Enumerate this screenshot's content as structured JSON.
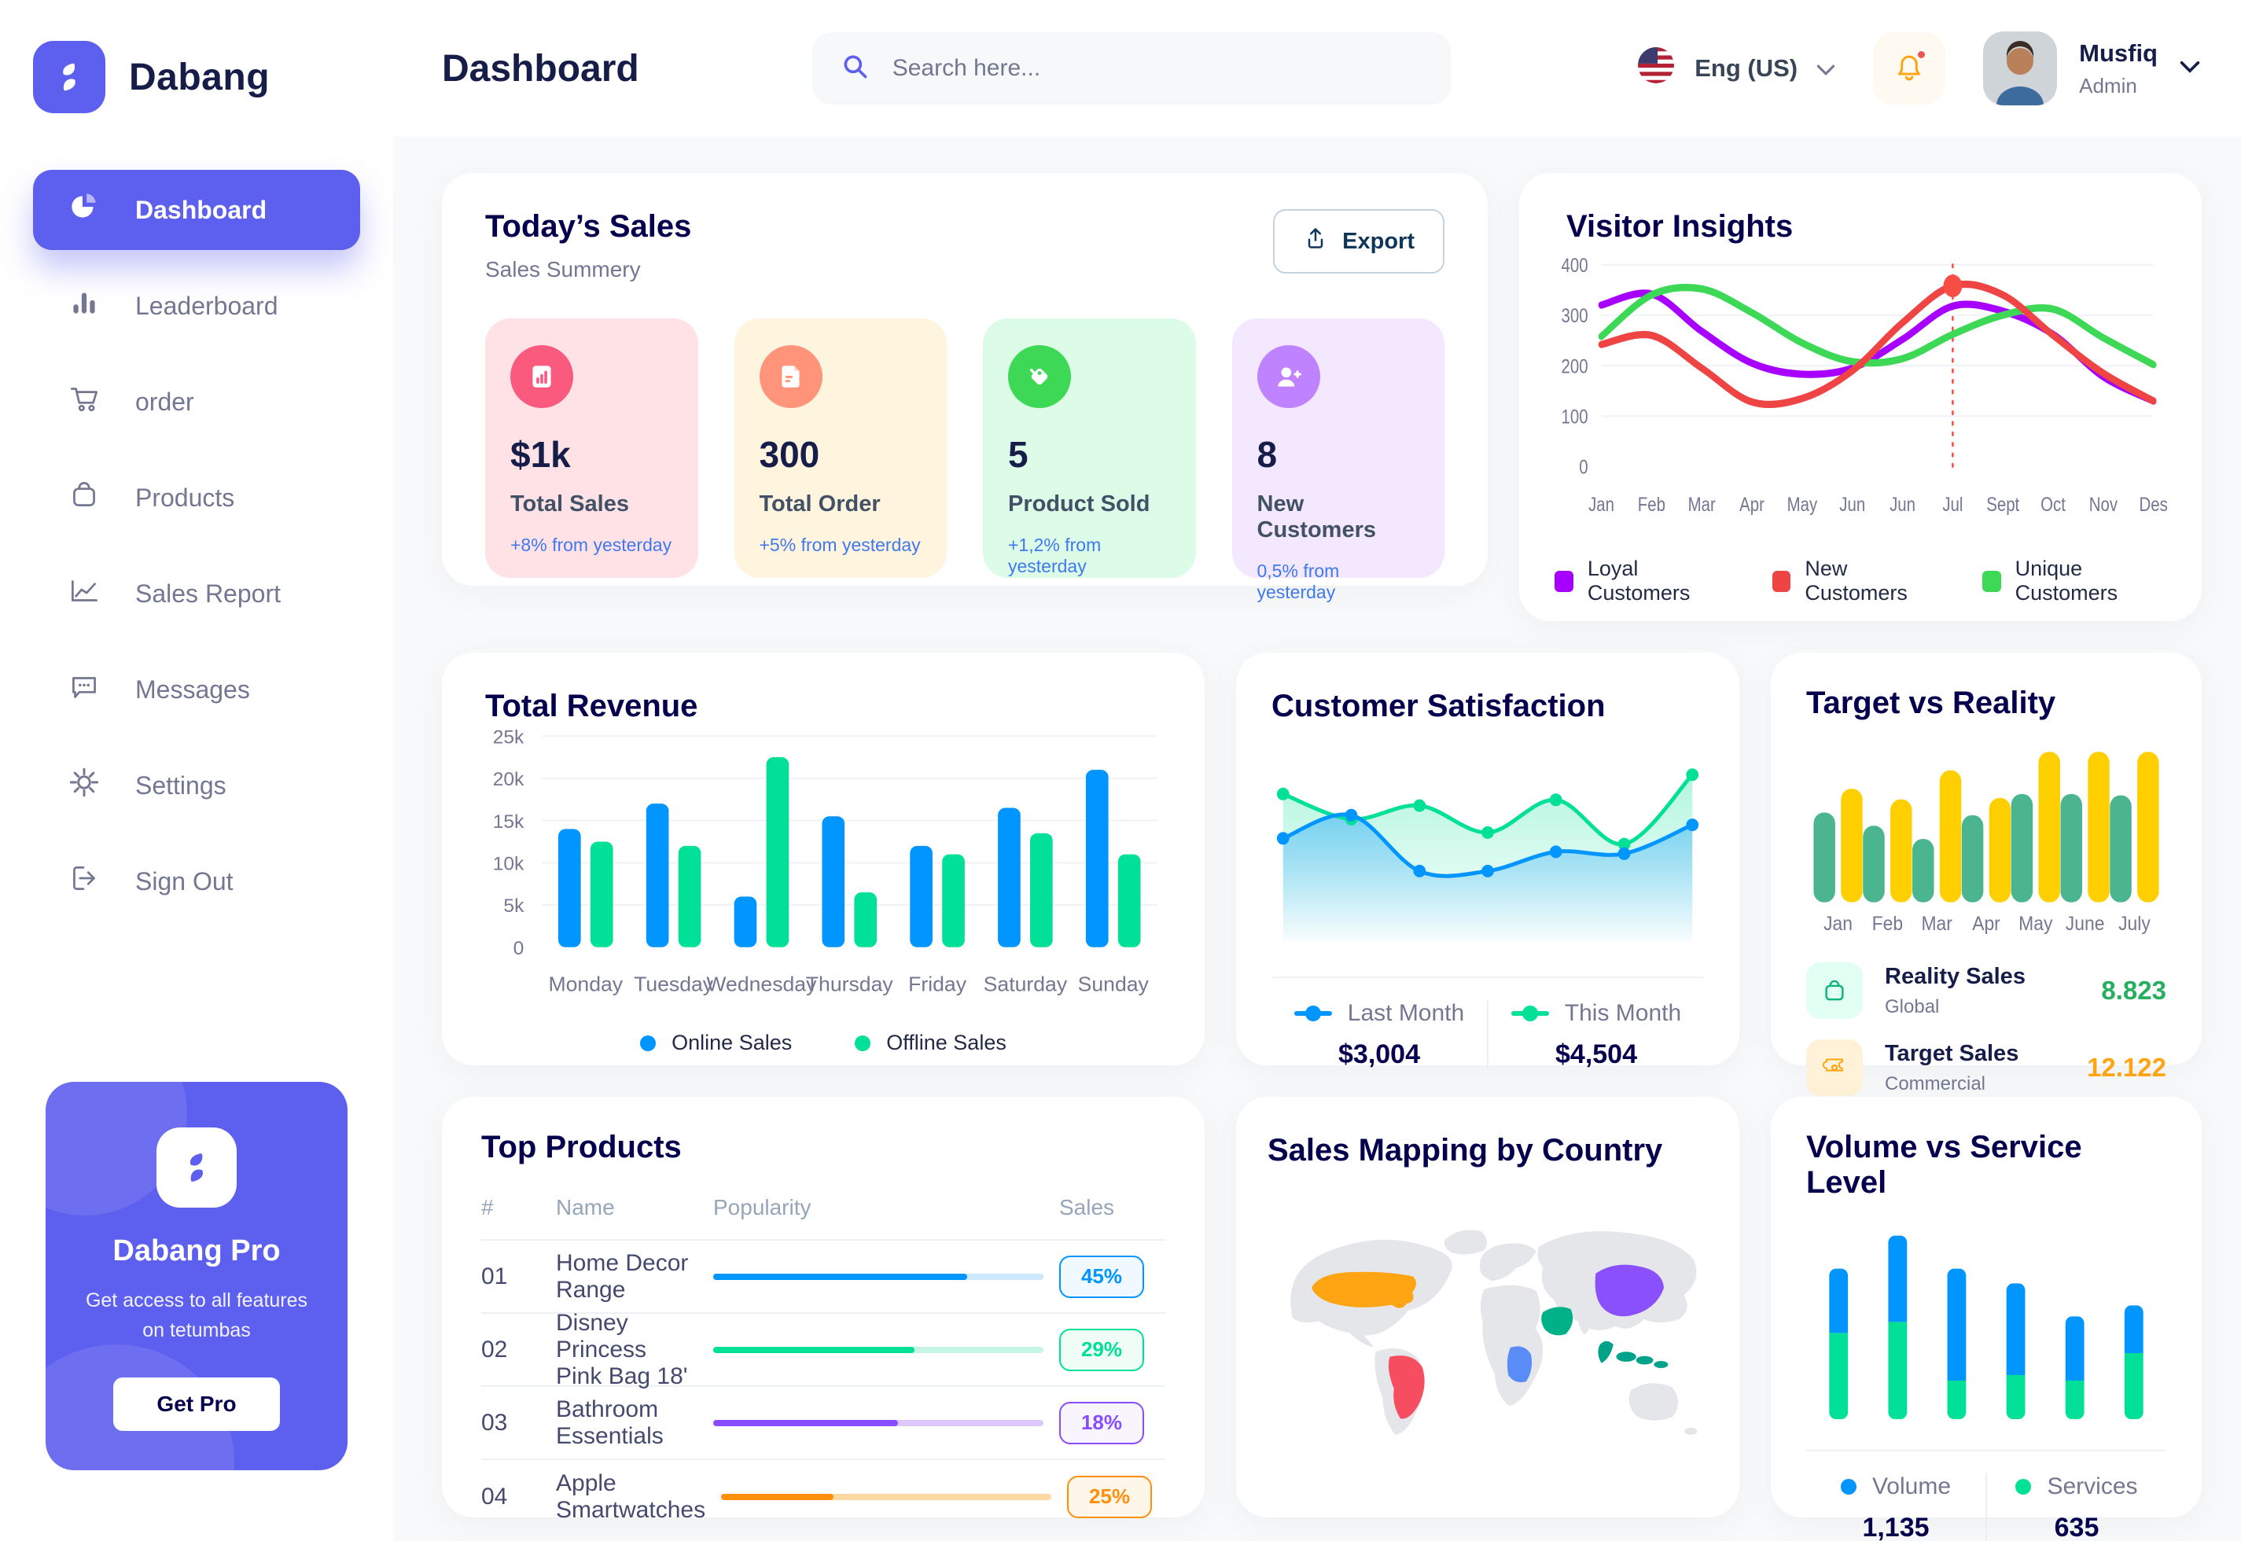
{
  "app": {
    "name": "Dabang"
  },
  "sidebar": {
    "items": [
      {
        "label": "Dashboard",
        "icon": "pie-chart-icon",
        "active": true
      },
      {
        "label": "Leaderboard",
        "icon": "bar-chart-icon"
      },
      {
        "label": "order",
        "icon": "cart-icon"
      },
      {
        "label": "Products",
        "icon": "bag-icon"
      },
      {
        "label": "Sales Report",
        "icon": "trend-icon"
      },
      {
        "label": "Messages",
        "icon": "message-icon"
      },
      {
        "label": "Settings",
        "icon": "gear-icon"
      },
      {
        "label": "Sign Out",
        "icon": "sign-out-icon"
      }
    ],
    "pro": {
      "title": "Dabang Pro",
      "subtitle": "Get access to all features on tetumbas",
      "button": "Get Pro"
    }
  },
  "header": {
    "title": "Dashboard",
    "search_placeholder": "Search here...",
    "language": "Eng (US)",
    "user": {
      "name": "Musfiq",
      "role": "Admin"
    }
  },
  "today_sales": {
    "title": "Today’s Sales",
    "subtitle": "Sales Summery",
    "export_label": "Export",
    "stats": [
      {
        "value": "$1k",
        "label": "Total Sales",
        "delta": "+8% from yesterday",
        "bg": "#FFE2E5",
        "circle": "#FA5A7D",
        "icon": "sales-chart-icon"
      },
      {
        "value": "300",
        "label": "Total Order",
        "delta": "+5% from yesterday",
        "bg": "#FFF4DE",
        "circle": "#FF947A",
        "icon": "order-file-icon"
      },
      {
        "value": "5",
        "label": "Product Sold",
        "delta": "+1,2% from yesterday",
        "bg": "#DCFCE7",
        "circle": "#3CD856",
        "icon": "tag-icon"
      },
      {
        "value": "8",
        "label": "New Customers",
        "delta": "0,5% from yesterday",
        "bg": "#F3E8FF",
        "circle": "#BF83FF",
        "icon": "new-customer-icon"
      }
    ]
  },
  "visitor_insights": {
    "title": "Visitor Insights"
  },
  "total_revenue": {
    "title": "Total Revenue"
  },
  "customer_satisfaction": {
    "title": "Customer Satisfaction"
  },
  "target_vs_reality": {
    "title": "Target vs Reality",
    "legend": [
      {
        "title": "Reality Sales",
        "sub": "Global",
        "value": "8.823",
        "value_color": "#27AE60",
        "tile_bg": "#E2FFF3",
        "icon": "bag-icon"
      },
      {
        "title": "Target Sales",
        "sub": "Commercial",
        "value": "12.122",
        "value_color": "#FFA412",
        "tile_bg": "#FFF2D8",
        "icon": "ticket-icon"
      }
    ]
  },
  "top_products": {
    "title": "Top Products",
    "columns": [
      "#",
      "Name",
      "Popularity",
      "Sales"
    ],
    "rows": [
      {
        "num": "01",
        "name": "Home Decor Range",
        "popularity": 77,
        "badge": "45%",
        "color": "#0095FF",
        "track": "#CDE7FF",
        "badge_bg": "#F0F9FF"
      },
      {
        "num": "02",
        "name": "Disney Princess Pink Bag 18'",
        "popularity": 61,
        "badge": "29%",
        "color": "#00E096",
        "track": "#C6F5E5",
        "badge_bg": "#F0FDF7"
      },
      {
        "num": "03",
        "name": "Bathroom Essentials",
        "popularity": 56,
        "badge": "18%",
        "color": "#884DFF",
        "track": "#DCC8FF",
        "badge_bg": "#F9F5FF"
      },
      {
        "num": "04",
        "name": "Apple Smartwatches",
        "popularity": 34,
        "badge": "25%",
        "color": "#FF8F0D",
        "track": "#FFD9A4",
        "badge_bg": "#FFF6EA"
      }
    ]
  },
  "sales_map": {
    "title": "Sales Mapping by Country",
    "highlighted_countries": [
      {
        "name": "United States",
        "color": "#FFA412"
      },
      {
        "name": "Brazil",
        "color": "#F64E60"
      },
      {
        "name": "Saudi Arabia",
        "color": "#00B087"
      },
      {
        "name": "DR Congo",
        "color": "#5A8CF8"
      },
      {
        "name": "China",
        "color": "#8950FC"
      },
      {
        "name": "Indonesia",
        "color": "#00A389"
      }
    ]
  },
  "volume_service": {
    "title": "Volume vs Service Level"
  },
  "chart_data": {
    "visitor_insights": {
      "type": "line",
      "x_labels": [
        "Jan",
        "Feb",
        "Mar",
        "Apr",
        "May",
        "Jun",
        "Jun",
        "Jul",
        "Sept",
        "Oct",
        "Nov",
        "Des"
      ],
      "y_ticks": [
        0,
        100,
        200,
        300,
        400
      ],
      "ylim": [
        0,
        400
      ],
      "grid": true,
      "legend_position": "bottom",
      "highlight_index": 7,
      "series": [
        {
          "name": "Loyal Customers",
          "color": "#A700FF",
          "values": [
            320,
            342,
            268,
            205,
            183,
            195,
            252,
            318,
            308,
            262,
            178,
            130
          ]
        },
        {
          "name": "New Customers",
          "color": "#EF4444",
          "values": [
            242,
            260,
            195,
            128,
            135,
            190,
            285,
            358,
            340,
            260,
            185,
            130
          ]
        },
        {
          "name": "Unique Customers",
          "color": "#3CD856",
          "values": [
            258,
            340,
            352,
            305,
            245,
            208,
            214,
            262,
            300,
            312,
            255,
            202
          ]
        }
      ]
    },
    "total_revenue": {
      "type": "bar",
      "categories": [
        "Monday",
        "Tuesday",
        "Wednesday",
        "Thursday",
        "Friday",
        "Saturday",
        "Sunday"
      ],
      "y_tick_labels": [
        "0",
        "5k",
        "10k",
        "15k",
        "20k",
        "25k"
      ],
      "ylim": [
        0,
        25
      ],
      "grid": true,
      "legend_position": "bottom",
      "series": [
        {
          "name": "Online Sales",
          "color": "#0095FF",
          "values": [
            14,
            17,
            6,
            15.5,
            12,
            16.5,
            21
          ]
        },
        {
          "name": "Offline Sales",
          "color": "#00E096",
          "values": [
            12.5,
            12,
            22.5,
            6.5,
            11,
            13.5,
            11
          ]
        }
      ]
    },
    "customer_satisfaction": {
      "type": "area",
      "ylim": [
        0,
        100
      ],
      "grid": false,
      "legend_position": "bottom",
      "series": [
        {
          "name": "Last Month",
          "color": "#0095FF",
          "value_label": "$3,004",
          "values": [
            55,
            67,
            38,
            38,
            48,
            47,
            62
          ]
        },
        {
          "name": "This Month",
          "color": "#00E096",
          "value_label": "$4,504",
          "values": [
            78,
            65,
            72,
            58,
            75,
            52,
            88
          ]
        }
      ]
    },
    "target_vs_reality": {
      "type": "bar",
      "categories": [
        "Jan",
        "Feb",
        "Mar",
        "Apr",
        "May",
        "June",
        "July"
      ],
      "ylim": [
        0,
        120
      ],
      "grid": false,
      "series": [
        {
          "name": "Reality Sales",
          "color": "#4AB58E",
          "values": [
            68,
            58,
            48,
            66,
            82,
            82,
            81
          ]
        },
        {
          "name": "Target Sales",
          "color": "#FFCF00",
          "values": [
            86,
            78,
            100,
            79,
            114,
            114,
            114
          ]
        }
      ]
    },
    "volume_service_level": {
      "type": "stacked-bar",
      "ylim": [
        0,
        10.5
      ],
      "grid": false,
      "legend_position": "bottom",
      "series": [
        {
          "name": "Volume",
          "color": "#0095FF",
          "value_label": "1,135",
          "values": [
            3.5,
            4.7,
            6.1,
            5.0,
            3.5,
            2.6
          ]
        },
        {
          "name": "Services",
          "color": "#00E096",
          "value_label": "635",
          "values": [
            4.7,
            5.3,
            2.1,
            2.4,
            2.1,
            3.6
          ]
        }
      ]
    }
  }
}
